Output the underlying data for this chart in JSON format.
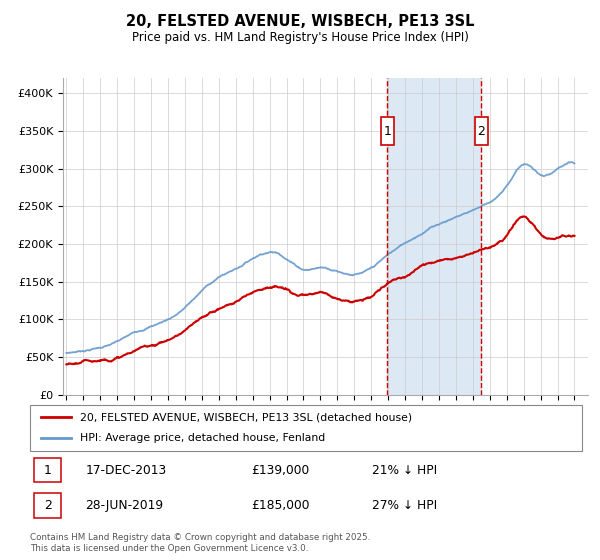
{
  "title": "20, FELSTED AVENUE, WISBECH, PE13 3SL",
  "subtitle": "Price paid vs. HM Land Registry's House Price Index (HPI)",
  "ylabel_ticks": [
    "£0",
    "£50K",
    "£100K",
    "£150K",
    "£200K",
    "£250K",
    "£300K",
    "£350K",
    "£400K"
  ],
  "ylim": [
    0,
    420000
  ],
  "xlim_start": 1994.8,
  "xlim_end": 2025.8,
  "vline1_x": 2013.96,
  "vline2_x": 2019.49,
  "vline1_label": "1",
  "vline2_label": "2",
  "sale1_date": "17-DEC-2013",
  "sale1_price": "£139,000",
  "sale1_hpi": "21% ↓ HPI",
  "sale2_date": "28-JUN-2019",
  "sale2_price": "£185,000",
  "sale2_hpi": "27% ↓ HPI",
  "legend1": "20, FELSTED AVENUE, WISBECH, PE13 3SL (detached house)",
  "legend2": "HPI: Average price, detached house, Fenland",
  "footer": "Contains HM Land Registry data © Crown copyright and database right 2025.\nThis data is licensed under the Open Government Licence v3.0.",
  "red_color": "#cc0000",
  "blue_color": "#6699cc",
  "shade_color": "#dce9f5",
  "background": "#ffffff",
  "grid_color": "#cccccc",
  "hpi_years": [
    1995,
    1996,
    1997,
    1998,
    1999,
    2000,
    2001,
    2002,
    2003,
    2004,
    2005,
    2006,
    2007,
    2008,
    2009,
    2010,
    2011,
    2012,
    2013,
    2014,
    2015,
    2016,
    2017,
    2018,
    2019,
    2020,
    2021,
    2022,
    2023,
    2024,
    2025
  ],
  "hpi_prices": [
    55000,
    59000,
    64000,
    71000,
    82000,
    92000,
    102000,
    118000,
    140000,
    158000,
    170000,
    185000,
    195000,
    188000,
    175000,
    178000,
    175000,
    172000,
    178000,
    195000,
    210000,
    225000,
    238000,
    248000,
    258000,
    270000,
    290000,
    320000,
    305000,
    310000,
    315000
  ],
  "red_years": [
    1995,
    1996,
    1997,
    1998,
    1999,
    2000,
    2001,
    2002,
    2003,
    2004,
    2005,
    2006,
    2007,
    2008,
    2009,
    2010,
    2011,
    2012,
    2013,
    2014,
    2015,
    2016,
    2017,
    2018,
    2019,
    2020,
    2021,
    2022,
    2023,
    2024,
    2025
  ],
  "red_prices": [
    40000,
    43000,
    47000,
    52000,
    60000,
    68000,
    76000,
    88000,
    102000,
    115000,
    125000,
    138000,
    148000,
    142000,
    132000,
    135000,
    130000,
    128000,
    133000,
    150000,
    162000,
    175000,
    185000,
    192000,
    200000,
    210000,
    225000,
    250000,
    230000,
    225000,
    228000
  ]
}
